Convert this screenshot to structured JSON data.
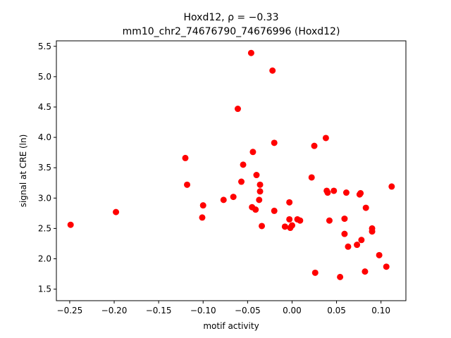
{
  "chart_data": {
    "type": "scatter",
    "title_line1": "Hoxd12, ρ = −0.33",
    "title_line2": "mm10_chr2_74676790_74676996 (Hoxd12)",
    "xlabel": "motif activity",
    "ylabel": "signal at CRE (ln)",
    "xlim": [
      -0.265,
      0.128
    ],
    "ylim": [
      1.31,
      5.59
    ],
    "xticks": [
      -0.25,
      -0.2,
      -0.15,
      -0.1,
      -0.05,
      0.0,
      0.05,
      0.1
    ],
    "xtick_labels": [
      "−0.25",
      "−0.20",
      "−0.15",
      "−0.10",
      "−0.05",
      "0.00",
      "0.05",
      "0.10"
    ],
    "yticks": [
      1.5,
      2.0,
      2.5,
      3.0,
      3.5,
      4.0,
      4.5,
      5.0,
      5.5
    ],
    "ytick_labels": [
      "1.5",
      "2.0",
      "2.5",
      "3.0",
      "3.5",
      "4.0",
      "4.5",
      "5.0",
      "5.5"
    ],
    "grid": false,
    "marker_color": "#ff0000",
    "x": [
      -0.249,
      -0.198,
      -0.12,
      -0.118,
      -0.1,
      -0.101,
      -0.077,
      -0.066,
      -0.061,
      -0.057,
      -0.055,
      -0.046,
      -0.045,
      -0.044,
      -0.041,
      -0.04,
      -0.037,
      -0.036,
      -0.036,
      -0.034,
      -0.022,
      -0.02,
      -0.02,
      -0.008,
      -0.003,
      -0.003,
      -0.002,
      0.0,
      0.006,
      0.009,
      0.022,
      0.025,
      0.026,
      0.038,
      0.039,
      0.04,
      0.042,
      0.047,
      0.054,
      0.059,
      0.059,
      0.061,
      0.063,
      0.073,
      0.076,
      0.077,
      0.078,
      0.082,
      0.083,
      0.09,
      0.09,
      0.098,
      0.106,
      0.112
    ],
    "y": [
      2.56,
      2.77,
      3.66,
      3.22,
      2.88,
      2.68,
      2.97,
      3.02,
      4.47,
      3.27,
      3.55,
      5.39,
      2.85,
      3.76,
      2.81,
      3.38,
      2.97,
      3.22,
      3.11,
      2.54,
      5.1,
      3.91,
      2.79,
      2.53,
      2.93,
      2.65,
      2.51,
      2.55,
      2.65,
      2.63,
      3.34,
      3.86,
      1.77,
      3.99,
      3.12,
      3.09,
      2.63,
      3.12,
      1.7,
      2.41,
      2.66,
      3.09,
      2.2,
      2.23,
      3.06,
      3.08,
      2.31,
      1.79,
      2.84,
      2.5,
      2.45,
      2.06,
      1.87,
      3.19
    ]
  }
}
